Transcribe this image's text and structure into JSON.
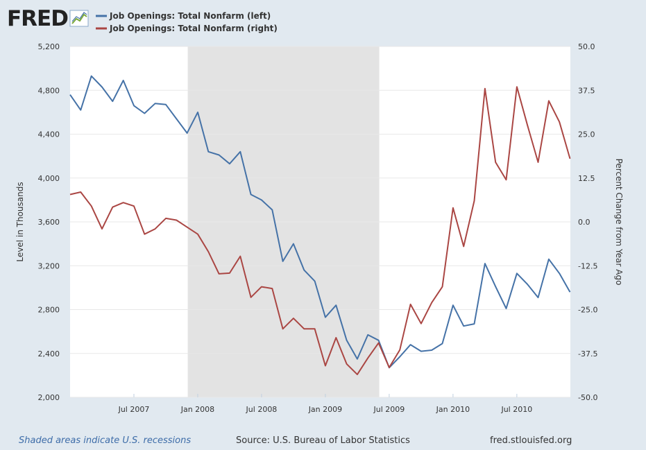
{
  "branding": {
    "logo": "FRED"
  },
  "legend": [
    {
      "label": "Job Openings: Total Nonfarm (left)",
      "color": "#4572a7"
    },
    {
      "label": "Job Openings: Total Nonfarm (right)",
      "color": "#aa4643"
    }
  ],
  "footer": {
    "note": "Shaded areas indicate U.S. recessions",
    "source": "Source: U.S. Bureau of Labor Statistics",
    "site": "fred.stlouisfed.org"
  },
  "chart_data": {
    "type": "line",
    "xlabels": [
      "Jul 2007",
      "Jan 2008",
      "Jul 2008",
      "Jan 2009",
      "Jul 2009",
      "Jan 2010",
      "Jul 2010"
    ],
    "x_start": "Jan 2007",
    "recession": {
      "start": "Dec 2007",
      "end": "Jun 2009"
    },
    "left_axis": {
      "title": "Level in Thousands",
      "range": [
        2000,
        5200
      ],
      "ticks": [
        "2,000",
        "2,400",
        "2,800",
        "3,200",
        "3,600",
        "4,000",
        "4,400",
        "4,800",
        "5,200"
      ]
    },
    "right_axis": {
      "title": "Percent Change from Year Ago",
      "range": [
        -50,
        50
      ],
      "ticks": [
        "-50.0",
        "-37.5",
        "-25.0",
        "-12.5",
        "0.0",
        "12.5",
        "25.0",
        "37.5",
        "50.0"
      ]
    },
    "grid": "horizontal",
    "series": [
      {
        "name": "Job Openings: Total Nonfarm (left)",
        "axis": "left",
        "color": "#4572a7",
        "values": [
          4760,
          4620,
          4930,
          4830,
          4700,
          4890,
          4660,
          4590,
          4680,
          4670,
          4540,
          4410,
          4600,
          4240,
          4210,
          4130,
          4240,
          3850,
          3800,
          3710,
          3240,
          3400,
          3160,
          3060,
          2730,
          2840,
          2520,
          2350,
          2570,
          2520,
          2270,
          2370,
          2480,
          2420,
          2430,
          2490,
          2840,
          2650,
          2670,
          3220,
          3010,
          2810,
          3130,
          3030,
          2910,
          3260,
          3130,
          2960
        ]
      },
      {
        "name": "Job Openings: Total Nonfarm (right)",
        "axis": "right",
        "color": "#aa4643",
        "values": [
          7.8,
          8.5,
          4.5,
          -2.0,
          4.2,
          5.5,
          4.5,
          -3.5,
          -2.0,
          1.0,
          0.5,
          -1.5,
          -3.5,
          -8.5,
          -14.8,
          -14.6,
          -9.8,
          -21.5,
          -18.5,
          -19.0,
          -30.5,
          -27.5,
          -30.5,
          -30.5,
          -41.0,
          -33.0,
          -40.5,
          -43.5,
          -38.8,
          -34.5,
          -41.5,
          -36.5,
          -23.5,
          -29.0,
          -23.0,
          -18.5,
          4.0,
          -7.0,
          6.0,
          38.0,
          17.0,
          12.0,
          38.5,
          27.5,
          17.0,
          34.5,
          28.5,
          18.0
        ]
      }
    ]
  }
}
